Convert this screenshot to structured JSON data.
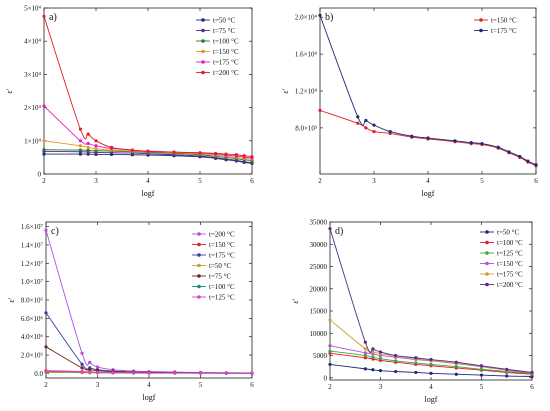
{
  "chart_data": [
    {
      "type": "line",
      "panel_label": "a)",
      "xlabel": "logf",
      "ylabel": "ε′",
      "xlim": [
        2,
        6
      ],
      "ylim": [
        0,
        50000
      ],
      "x_ticks": [
        2,
        3,
        4,
        5,
        6
      ],
      "y_ticks": [
        0,
        10000,
        20000,
        30000,
        40000,
        50000
      ],
      "y_tick_labels": [
        "0",
        "1×10⁴",
        "2×10⁴",
        "3×10⁴",
        "4×10⁴",
        "5×10⁴"
      ],
      "x": [
        2.0,
        2.7,
        2.85,
        3.0,
        3.3,
        3.7,
        4.0,
        4.5,
        5.0,
        5.3,
        5.5,
        5.7,
        5.85,
        6.0
      ],
      "legend_position": "top-right",
      "grid": false,
      "series": [
        {
          "name": "t=50 °C",
          "color": "#1f2a7a",
          "values": [
            6000,
            6000,
            6000,
            5900,
            5900,
            5800,
            5700,
            5500,
            5200,
            4700,
            4300,
            3900,
            3500,
            3200
          ]
        },
        {
          "name": "t=75 °C",
          "color": "#5a2a8a",
          "values": [
            6800,
            6700,
            6600,
            6500,
            6400,
            6300,
            6100,
            5800,
            5400,
            4900,
            4500,
            4100,
            3700,
            3400
          ]
        },
        {
          "name": "t=100 °C",
          "color": "#1f7a2a",
          "values": [
            7300,
            7200,
            7100,
            7000,
            6900,
            6700,
            6500,
            6200,
            5800,
            5300,
            5000,
            4600,
            4300,
            4000
          ]
        },
        {
          "name": "t=150 °C",
          "color": "#e8961e",
          "values": [
            10000,
            8500,
            8000,
            7600,
            7200,
            6900,
            6700,
            6400,
            6100,
            5700,
            5400,
            5000,
            4700,
            4500
          ]
        },
        {
          "name": "t=175 °C",
          "color": "#e020c0",
          "values": [
            20500,
            10000,
            9200,
            8500,
            7700,
            7200,
            6900,
            6600,
            6300,
            6000,
            5700,
            5400,
            5100,
            4800
          ]
        },
        {
          "name": "t=200 °C",
          "color": "#e01e2a",
          "values": [
            47500,
            13500,
            12000,
            10000,
            8000,
            7200,
            6800,
            6600,
            6400,
            6200,
            6000,
            5800,
            5500,
            5200
          ]
        }
      ]
    },
    {
      "type": "line",
      "panel_label": "b)",
      "xlabel": "logf",
      "ylabel": "ε′",
      "xlim": [
        2,
        6
      ],
      "ylim": [
        3000,
        21000
      ],
      "x_ticks": [
        2,
        3,
        4,
        5,
        6
      ],
      "y_ticks": [
        8000,
        12000,
        16000,
        20000
      ],
      "y_tick_labels": [
        "8.0×10³",
        "1.2×10⁴",
        "1.6×10⁴",
        "2.0×10⁴"
      ],
      "x": [
        2.0,
        2.7,
        2.85,
        3.0,
        3.3,
        3.7,
        4.0,
        4.5,
        4.8,
        5.0,
        5.3,
        5.5,
        5.7,
        5.85,
        6.0
      ],
      "legend_position": "top-right",
      "grid": false,
      "series": [
        {
          "name": "t=150 °C",
          "color": "#e01e2a",
          "values": [
            9900,
            8500,
            8000,
            7600,
            7400,
            7000,
            6800,
            6500,
            6300,
            6200,
            5800,
            5300,
            4800,
            4300,
            3900
          ]
        },
        {
          "name": "t=175 °C",
          "color": "#1f2a7a",
          "values": [
            20200,
            9200,
            8800,
            8300,
            7600,
            7100,
            6900,
            6600,
            6400,
            6300,
            5900,
            5400,
            4900,
            4400,
            4000
          ]
        }
      ]
    },
    {
      "type": "line",
      "panel_label": "c)",
      "xlabel": "logf",
      "ylabel": "ε′",
      "xlim": [
        2,
        6
      ],
      "ylim": [
        -500000,
        16500000
      ],
      "x_ticks": [
        2,
        3,
        4,
        5,
        6
      ],
      "y_ticks": [
        0,
        2000000,
        4000000,
        6000000,
        8000000,
        10000000,
        12000000,
        14000000,
        16000000
      ],
      "y_tick_labels": [
        "0.0",
        "2.0×10⁶",
        "4.0×10⁶",
        "6.0×10⁶",
        "8.0×10⁶",
        "1.0×10⁷",
        "1.2×10⁷",
        "1.4×10⁷",
        "1.6×10⁷"
      ],
      "x": [
        2.0,
        2.7,
        2.85,
        3.0,
        3.3,
        3.7,
        4.0,
        4.5,
        5.0,
        5.5,
        6.0
      ],
      "legend_position": "top-right",
      "grid": false,
      "series": [
        {
          "name": "t=200 °C",
          "color": "#b050e0",
          "values": [
            15600000,
            2200000,
            1200000,
            700000,
            400000,
            250000,
            200000,
            150000,
            100000,
            80000,
            50000
          ]
        },
        {
          "name": "t=150 °C",
          "color": "#e01e2a",
          "values": [
            300000,
            200000,
            150000,
            120000,
            100000,
            80000,
            60000,
            50000,
            40000,
            30000,
            20000
          ]
        },
        {
          "name": "t=175 °C",
          "color": "#3a3aa8",
          "values": [
            6600000,
            1000000,
            600000,
            400000,
            250000,
            150000,
            120000,
            90000,
            60000,
            40000,
            30000
          ]
        },
        {
          "name": "t=50 °C",
          "color": "#c8a030",
          "values": [
            100000,
            80000,
            60000,
            50000,
            40000,
            30000,
            25000,
            20000,
            15000,
            10000,
            8000
          ]
        },
        {
          "name": "t=75 °C",
          "color": "#6b2a10",
          "values": [
            2900000,
            600000,
            400000,
            300000,
            200000,
            120000,
            100000,
            70000,
            50000,
            30000,
            20000
          ]
        },
        {
          "name": "t=100 °C",
          "color": "#1f8a7a",
          "values": [
            200000,
            150000,
            120000,
            100000,
            80000,
            60000,
            50000,
            40000,
            30000,
            20000,
            15000
          ]
        },
        {
          "name": "t=125 °C",
          "color": "#e040d0",
          "values": [
            250000,
            180000,
            140000,
            110000,
            90000,
            70000,
            55000,
            45000,
            35000,
            25000,
            18000
          ]
        }
      ]
    },
    {
      "type": "line",
      "panel_label": "d)",
      "xlabel": "logf",
      "ylabel": "ε′",
      "xlim": [
        2,
        6
      ],
      "ylim": [
        -500,
        35000
      ],
      "x_ticks": [
        2,
        3,
        4,
        5,
        6
      ],
      "y_ticks": [
        0,
        5000,
        10000,
        15000,
        20000,
        25000,
        30000,
        35000
      ],
      "y_tick_labels": [
        "0",
        "5000",
        "10000",
        "15000",
        "20000",
        "25000",
        "30000",
        "35000"
      ],
      "x": [
        2.0,
        2.7,
        2.85,
        3.0,
        3.3,
        3.7,
        4.0,
        4.5,
        5.0,
        5.5,
        6.0
      ],
      "legend_position": "top-right",
      "grid": false,
      "series": [
        {
          "name": "t=50 °C",
          "color": "#1f2a7a",
          "values": [
            3000,
            2000,
            1800,
            1600,
            1400,
            1200,
            1000,
            800,
            600,
            400,
            300
          ]
        },
        {
          "name": "t=100 °C",
          "color": "#e01e2a",
          "values": [
            5500,
            4500,
            4200,
            3900,
            3500,
            3000,
            2700,
            2200,
            1700,
            1200,
            800
          ]
        },
        {
          "name": "t=125 °C",
          "color": "#3aa830",
          "values": [
            6000,
            5000,
            4600,
            4300,
            3800,
            3300,
            3000,
            2500,
            1900,
            1400,
            900
          ]
        },
        {
          "name": "t=150 °C",
          "color": "#b050e0",
          "values": [
            7200,
            5600,
            5300,
            5000,
            4600,
            4100,
            3800,
            3200,
            2500,
            1700,
            1000
          ]
        },
        {
          "name": "t=175 °C",
          "color": "#c8a030",
          "values": [
            13000,
            6500,
            5800,
            5400,
            4900,
            4300,
            3900,
            3300,
            2600,
            1800,
            1100
          ]
        },
        {
          "name": "t=200 °C",
          "color": "#5a2a8a",
          "values": [
            33500,
            8000,
            6500,
            5800,
            5000,
            4500,
            4100,
            3500,
            2700,
            1900,
            1200
          ]
        }
      ]
    }
  ]
}
